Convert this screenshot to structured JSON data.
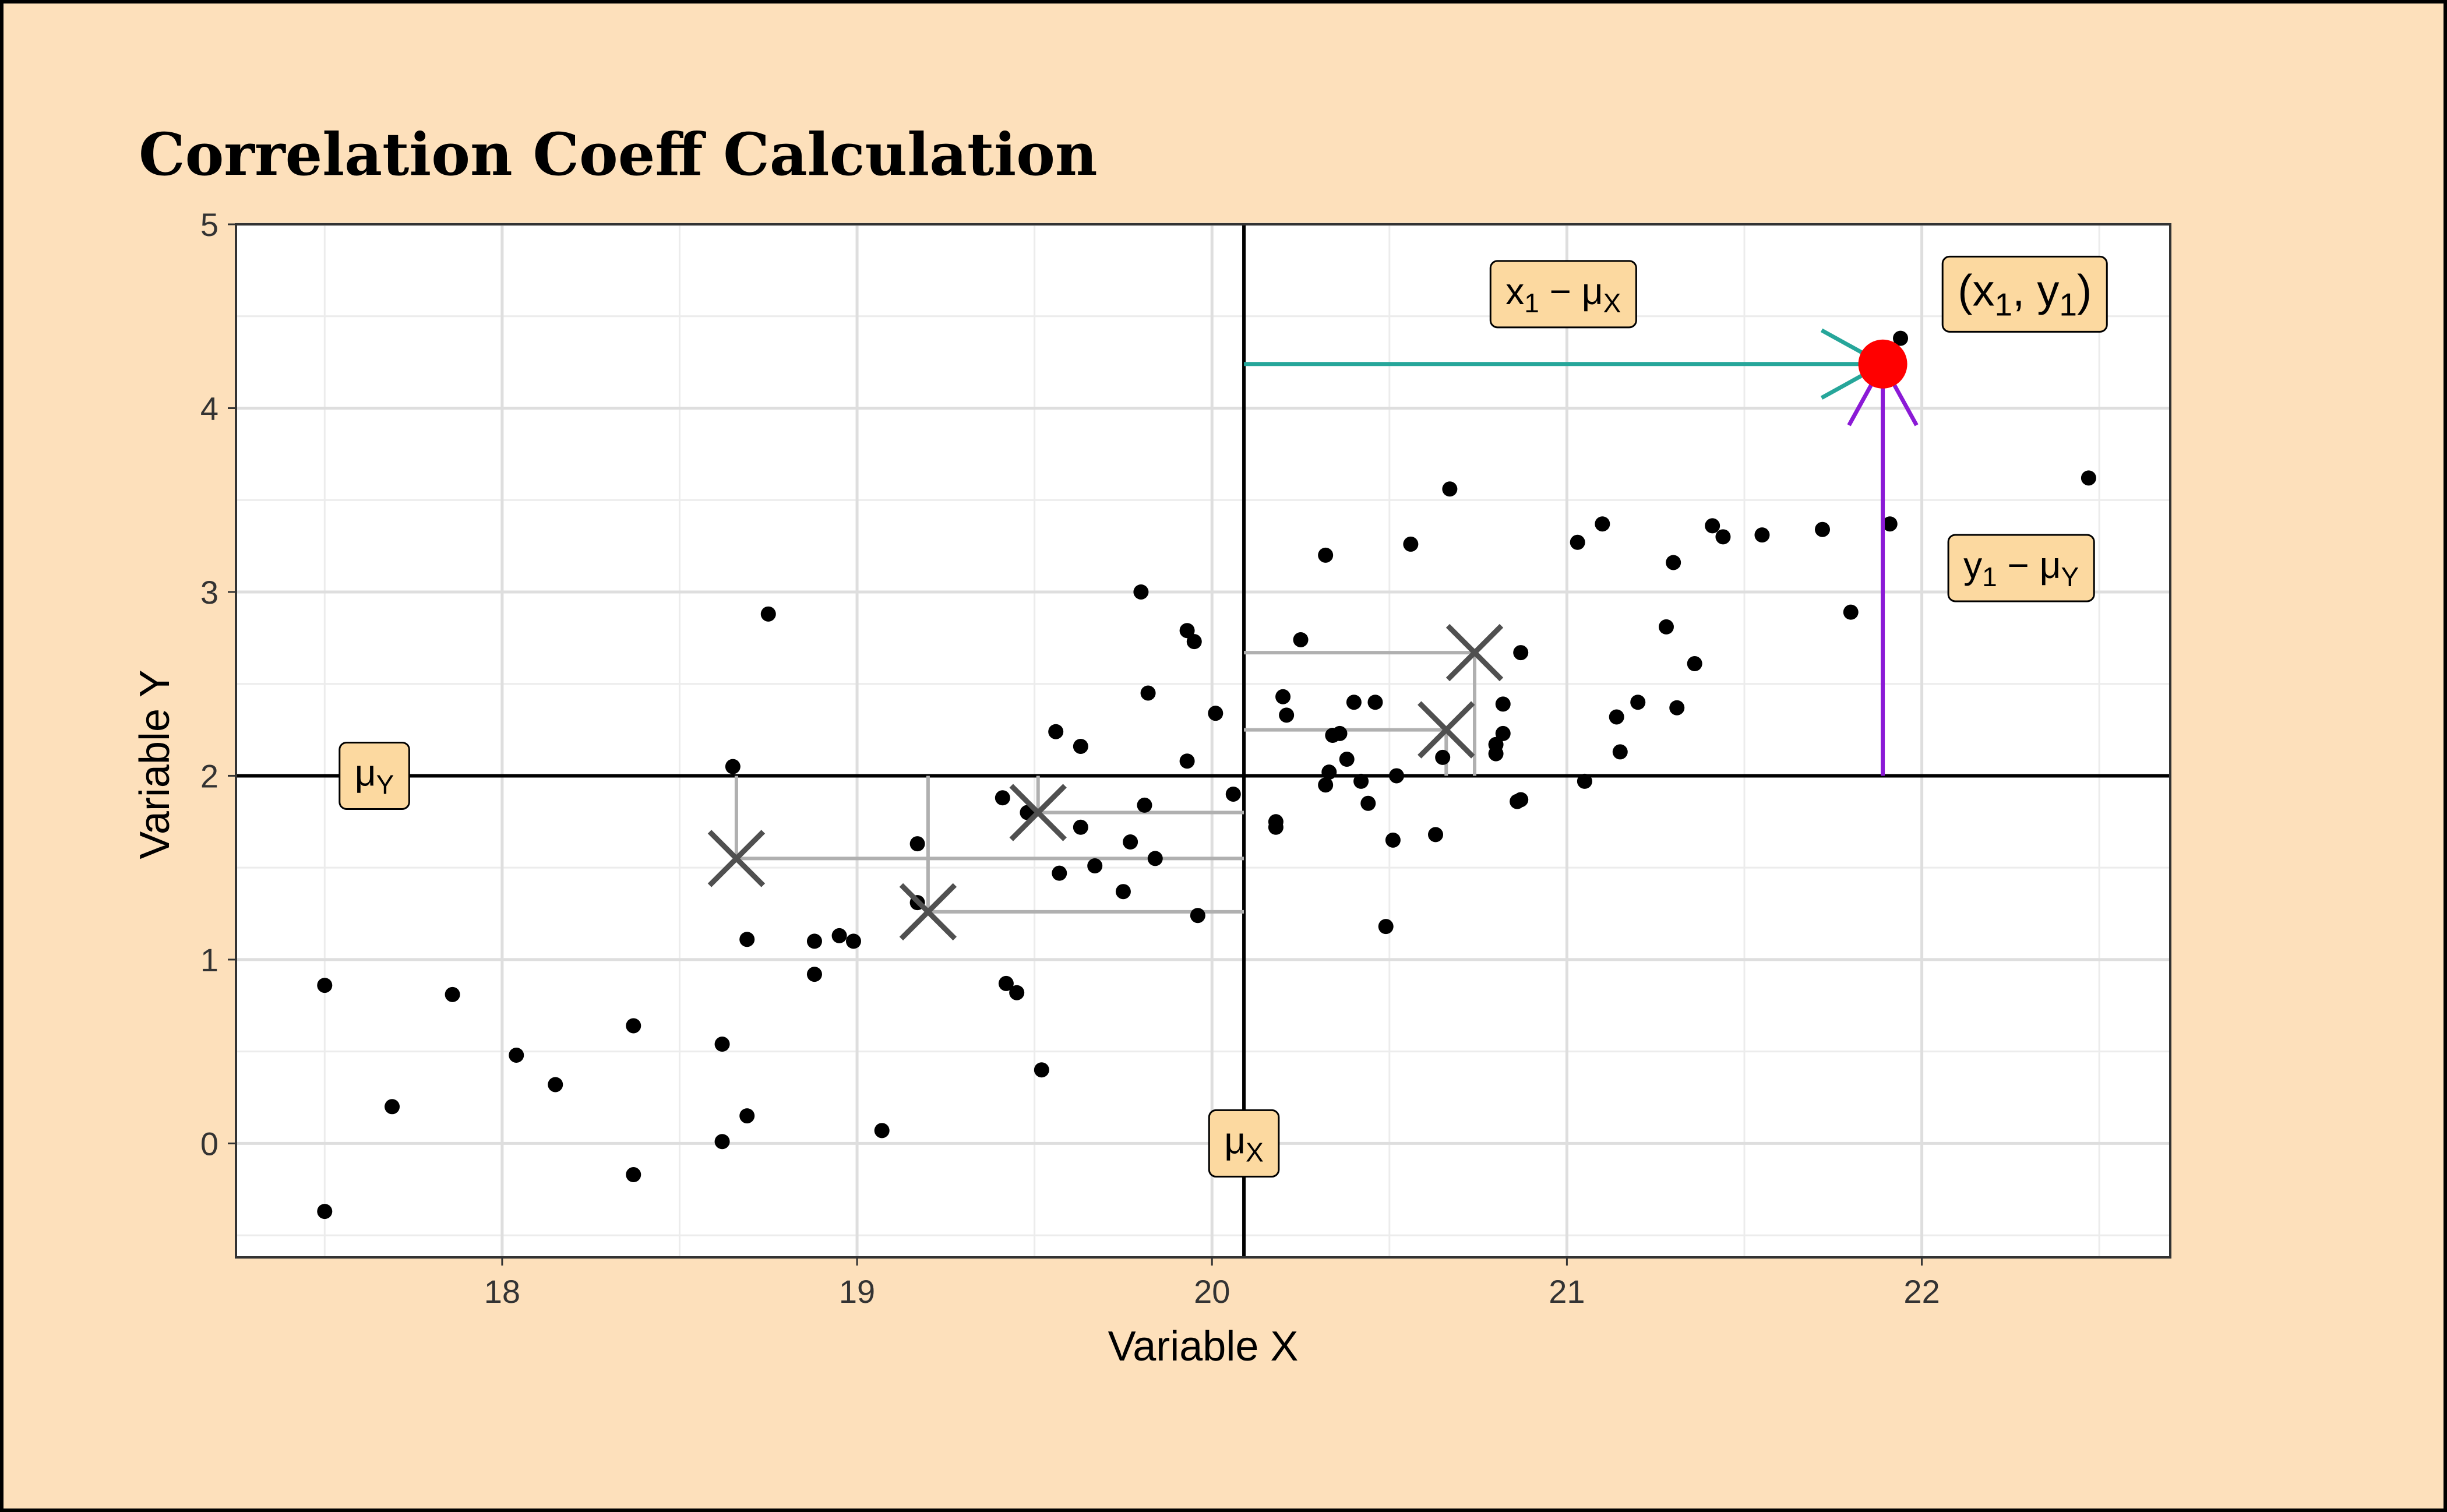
{
  "chart_data": {
    "type": "scatter",
    "title": "Correlation Coeff Calculation",
    "xlabel": "Variable X",
    "ylabel": "Variable Y",
    "xlim": [
      17.25,
      22.7
    ],
    "ylim": [
      -0.62,
      5.0
    ],
    "x_ticks": [
      18,
      19,
      20,
      21,
      22
    ],
    "y_ticks": [
      0,
      1,
      2,
      3,
      4,
      5
    ],
    "grid": true,
    "legend": "none",
    "colors": {
      "points": "#000000",
      "highlight_point": "#ff0000",
      "x_deviation": "#26a69a",
      "y_deviation": "#8b1ad6",
      "label_fill": "#fcd9a0",
      "connector": "#b0b0b0",
      "cross": "#505050",
      "background": "#fde0bb"
    },
    "mean_x": 20.09,
    "mean_y": 2.0,
    "points": [
      {
        "x": 17.5,
        "y": 0.86
      },
      {
        "x": 17.5,
        "y": -0.37
      },
      {
        "x": 17.69,
        "y": 0.2
      },
      {
        "x": 17.86,
        "y": 0.81
      },
      {
        "x": 18.04,
        "y": 0.48
      },
      {
        "x": 18.15,
        "y": 0.32
      },
      {
        "x": 18.37,
        "y": 0.64
      },
      {
        "x": 18.37,
        "y": -0.17
      },
      {
        "x": 18.62,
        "y": 0.54
      },
      {
        "x": 18.62,
        "y": 0.01
      },
      {
        "x": 18.65,
        "y": 2.05
      },
      {
        "x": 18.69,
        "y": 1.11
      },
      {
        "x": 18.69,
        "y": 0.15
      },
      {
        "x": 18.75,
        "y": 2.88
      },
      {
        "x": 18.88,
        "y": 1.1
      },
      {
        "x": 18.88,
        "y": 0.92
      },
      {
        "x": 18.95,
        "y": 1.13
      },
      {
        "x": 18.99,
        "y": 1.1
      },
      {
        "x": 19.07,
        "y": 0.07
      },
      {
        "x": 19.17,
        "y": 1.63
      },
      {
        "x": 19.17,
        "y": 1.31
      },
      {
        "x": 19.41,
        "y": 1.88
      },
      {
        "x": 19.42,
        "y": 0.87
      },
      {
        "x": 19.45,
        "y": 0.82
      },
      {
        "x": 19.48,
        "y": 1.8
      },
      {
        "x": 19.52,
        "y": 0.4
      },
      {
        "x": 19.56,
        "y": 2.24
      },
      {
        "x": 19.57,
        "y": 1.47
      },
      {
        "x": 19.63,
        "y": 2.16
      },
      {
        "x": 19.63,
        "y": 1.72
      },
      {
        "x": 19.67,
        "y": 1.51
      },
      {
        "x": 19.75,
        "y": 1.37
      },
      {
        "x": 19.77,
        "y": 1.64
      },
      {
        "x": 19.8,
        "y": 3.0
      },
      {
        "x": 19.81,
        "y": 1.84
      },
      {
        "x": 19.82,
        "y": 2.45
      },
      {
        "x": 19.84,
        "y": 1.55
      },
      {
        "x": 19.93,
        "y": 2.08
      },
      {
        "x": 19.93,
        "y": 2.79
      },
      {
        "x": 19.95,
        "y": 2.73
      },
      {
        "x": 19.96,
        "y": 1.24
      },
      {
        "x": 20.01,
        "y": 2.34
      },
      {
        "x": 20.06,
        "y": 1.9
      },
      {
        "x": 20.18,
        "y": 1.75
      },
      {
        "x": 20.18,
        "y": 1.72
      },
      {
        "x": 20.2,
        "y": 2.43
      },
      {
        "x": 20.21,
        "y": 2.33
      },
      {
        "x": 20.25,
        "y": 2.74
      },
      {
        "x": 20.32,
        "y": 3.2
      },
      {
        "x": 20.32,
        "y": 1.95
      },
      {
        "x": 20.33,
        "y": 2.02
      },
      {
        "x": 20.34,
        "y": 2.22
      },
      {
        "x": 20.36,
        "y": 2.23
      },
      {
        "x": 20.38,
        "y": 2.09
      },
      {
        "x": 20.4,
        "y": 2.4
      },
      {
        "x": 20.42,
        "y": 1.97
      },
      {
        "x": 20.44,
        "y": 1.85
      },
      {
        "x": 20.46,
        "y": 2.4
      },
      {
        "x": 20.49,
        "y": 1.18
      },
      {
        "x": 20.51,
        "y": 1.65
      },
      {
        "x": 20.52,
        "y": 2.0
      },
      {
        "x": 20.56,
        "y": 3.26
      },
      {
        "x": 20.63,
        "y": 1.68
      },
      {
        "x": 20.65,
        "y": 2.1
      },
      {
        "x": 20.67,
        "y": 3.56
      },
      {
        "x": 20.8,
        "y": 2.17
      },
      {
        "x": 20.8,
        "y": 2.12
      },
      {
        "x": 20.82,
        "y": 2.23
      },
      {
        "x": 20.82,
        "y": 2.39
      },
      {
        "x": 20.86,
        "y": 1.86
      },
      {
        "x": 20.87,
        "y": 2.67
      },
      {
        "x": 20.87,
        "y": 1.87
      },
      {
        "x": 21.03,
        "y": 3.27
      },
      {
        "x": 21.05,
        "y": 1.97
      },
      {
        "x": 21.1,
        "y": 3.37
      },
      {
        "x": 21.14,
        "y": 2.32
      },
      {
        "x": 21.15,
        "y": 2.13
      },
      {
        "x": 21.2,
        "y": 2.4
      },
      {
        "x": 21.28,
        "y": 2.81
      },
      {
        "x": 21.3,
        "y": 3.16
      },
      {
        "x": 21.31,
        "y": 2.37
      },
      {
        "x": 21.36,
        "y": 2.61
      },
      {
        "x": 21.41,
        "y": 3.36
      },
      {
        "x": 21.44,
        "y": 3.3
      },
      {
        "x": 21.55,
        "y": 3.31
      },
      {
        "x": 21.72,
        "y": 3.34
      },
      {
        "x": 21.8,
        "y": 2.89
      },
      {
        "x": 21.91,
        "y": 3.37
      },
      {
        "x": 21.94,
        "y": 4.38
      },
      {
        "x": 22.47,
        "y": 3.62
      }
    ],
    "highlight_point": {
      "x": 21.89,
      "y": 4.24
    },
    "crosses": [
      {
        "x": 18.66,
        "y": 1.55
      },
      {
        "x": 19.2,
        "y": 1.26
      },
      {
        "x": 19.51,
        "y": 1.8
      },
      {
        "x": 20.66,
        "y": 2.25
      },
      {
        "x": 20.74,
        "y": 2.67
      }
    ],
    "labels": {
      "mu_y": {
        "main": "μ",
        "sub": "Y",
        "x": 17.64,
        "y": 2.0
      },
      "mu_x": {
        "main": "μ",
        "sub": "X",
        "x": 20.09,
        "y": 0.0
      },
      "x_dev": {
        "a": "x",
        "a_sub": "1",
        "op": " − μ",
        "b_sub": "X",
        "x": 20.99,
        "y": 4.62
      },
      "y_dev": {
        "a": "y",
        "a_sub": "1",
        "op": " − μ",
        "b_sub": "Y",
        "x": 22.28,
        "y": 3.13
      },
      "point": {
        "text_a": "(x",
        "sub1": "1",
        "mid": ", y",
        "sub2": "1",
        "end": ")",
        "x": 22.29,
        "y": 4.62
      }
    }
  }
}
